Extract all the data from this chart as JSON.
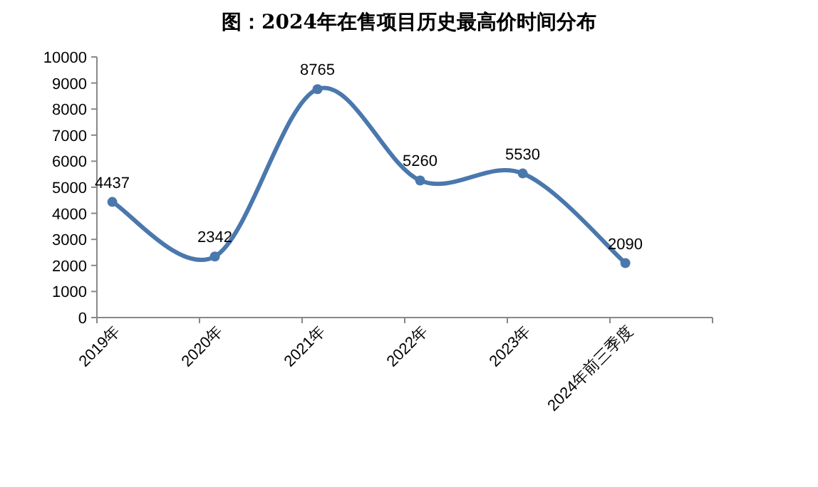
{
  "chart_data": {
    "type": "line",
    "title": "图：2024年在售项目历史最高价时间分布",
    "categories": [
      "2019年",
      "2020年",
      "2021年",
      "2022年",
      "2023年",
      "2024年前三季度"
    ],
    "series": [
      {
        "color": "#4a78ad",
        "values": [
          4437,
          2342,
          8765,
          5260,
          5530,
          2090
        ]
      }
    ],
    "ylim": [
      0,
      10000
    ],
    "yticks": [
      0,
      1000,
      2000,
      3000,
      4000,
      5000,
      6000,
      7000,
      8000,
      9000,
      10000
    ],
    "data_labels": true,
    "marker": "circle",
    "grid": false
  }
}
